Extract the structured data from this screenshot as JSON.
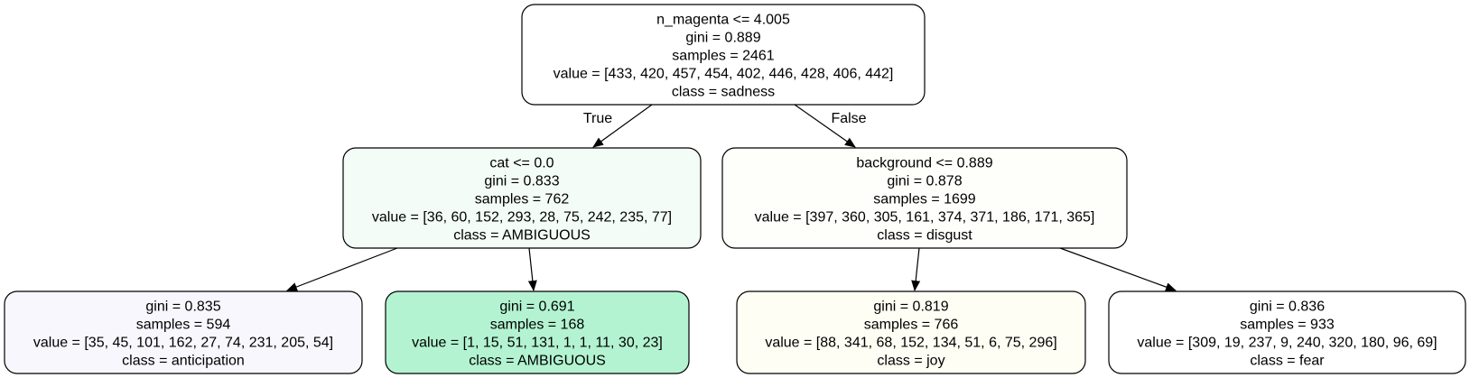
{
  "tree": {
    "nodes": [
      {
        "id": "root",
        "fill": "#ffffff",
        "lines": [
          "n_magenta <= 4.005",
          "gini = 0.889",
          "samples = 2461",
          "value = [433, 420, 457, 454, 402, 446, 428, 406, 442]",
          "class = sadness"
        ]
      },
      {
        "id": "left",
        "fill": "#f3fcf7",
        "lines": [
          "cat <= 0.0",
          "gini = 0.833",
          "samples = 762",
          "value = [36, 60, 152, 293, 28, 75, 242, 235, 77]",
          "class = AMBIGUOUS"
        ]
      },
      {
        "id": "right",
        "fill": "#fefefb",
        "lines": [
          "background <= 0.889",
          "gini = 0.878",
          "samples = 1699",
          "value = [397, 360, 305, 161, 374, 371, 186, 171, 365]",
          "class = disgust"
        ]
      },
      {
        "id": "leaf-ll",
        "fill": "#f9f7fe",
        "lines": [
          "gini = 0.835",
          "samples = 594",
          "value = [35, 45, 101, 162, 27, 74, 231, 205, 54]",
          "class = anticipation"
        ]
      },
      {
        "id": "leaf-lr",
        "fill": "#b3f3d1",
        "lines": [
          "gini = 0.691",
          "samples = 168",
          "value = [1, 15, 51, 131, 1, 1, 11, 30, 23]",
          "class = AMBIGUOUS"
        ]
      },
      {
        "id": "leaf-rl",
        "fill": "#fefef4",
        "lines": [
          "gini = 0.819",
          "samples = 766",
          "value = [88, 341, 68, 152, 134, 51, 6, 75, 296]",
          "class = joy"
        ]
      },
      {
        "id": "leaf-rr",
        "fill": "#ffffff",
        "lines": [
          "gini = 0.836",
          "samples = 933",
          "value = [309, 19, 237, 9, 240, 320, 180, 96, 69]",
          "class = fear"
        ]
      }
    ],
    "edges": [
      {
        "from": "root",
        "to": "left",
        "label": "True"
      },
      {
        "from": "root",
        "to": "right",
        "label": "False"
      },
      {
        "from": "left",
        "to": "leaf-ll",
        "label": ""
      },
      {
        "from": "left",
        "to": "leaf-lr",
        "label": ""
      },
      {
        "from": "right",
        "to": "leaf-rl",
        "label": ""
      },
      {
        "from": "right",
        "to": "leaf-rr",
        "label": ""
      }
    ]
  }
}
